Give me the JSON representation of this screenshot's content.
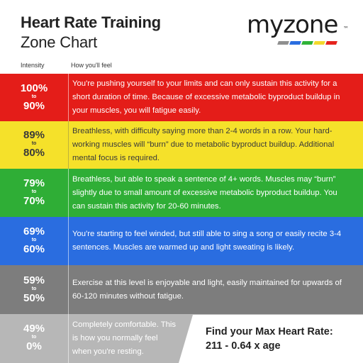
{
  "header": {
    "title_bold": "Heart Rate Training",
    "title_light": "Zone Chart",
    "col_intensity": "Intensity",
    "col_feel": "How you'll feel"
  },
  "logo": {
    "text": "myzone",
    "mark": "™",
    "bar_colors": [
      "#8f8f8f",
      "#2a6ee0",
      "#2fb238",
      "#f2d92c",
      "#e5231d"
    ]
  },
  "zones": [
    {
      "top": "100%",
      "to": "to",
      "bottom": "90%",
      "color": "#e41d19",
      "description": "You're pushing yourself to your limits and can only sustain this activity for a short duration of time. Because of excessive metabolic byproduct buildup in your muscles, you will fatigue easily."
    },
    {
      "top": "89%",
      "to": "to",
      "bottom": "80%",
      "color": "#f5e12a",
      "description": "Breathless, with difficulty saying more than 2-4 words in a row. Your hard-working muscles will “burn” due to metabolic byproduct buildup. Additional mental focus is required."
    },
    {
      "top": "79%",
      "to": "to",
      "bottom": "70%",
      "color": "#2fae36",
      "description": "Breathless, but able to speak a sentence of 4+ words. Muscles may “burn” slightly due to small amount of excessive metabolic byproduct buildup. You can sustain this activity for 20-60 minutes."
    },
    {
      "top": "69%",
      "to": "to",
      "bottom": "60%",
      "color": "#2a6de0",
      "description": "You're starting to feel winded, but still able to sing a song or easily recite 3-4 sentences. Muscles are warmed up and light sweating is likely."
    },
    {
      "top": "59%",
      "to": "to",
      "bottom": "50%",
      "color": "#7d7d7d",
      "description": "Exercise at this level is enjoyable and light, easily maintained for upwards of 60-120 minutes without fatigue."
    },
    {
      "top": "49%",
      "to": "to",
      "bottom": "0%",
      "color": "#b7b7b7",
      "description": "Completely comfortable. This is how you normally feel when you're resting."
    }
  ],
  "max_hr": {
    "line1": "Find your Max Heart Rate:",
    "line2": "211 - 0.64 x age"
  }
}
